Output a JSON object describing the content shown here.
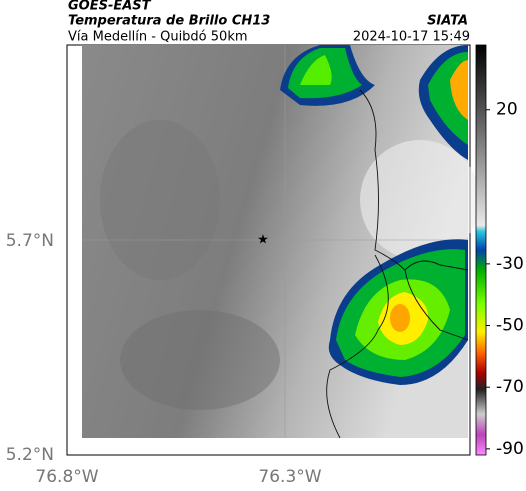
{
  "header": {
    "title": "GOES-EAST",
    "subtitle": "Temperatura de Brillo CH13",
    "source": "SIATA",
    "location": "Vía Medellín - Quibdó 50km",
    "timestamp": "2024-10-17 15:49"
  },
  "map": {
    "lat_labels": [
      "5.7°N",
      "5.2°N"
    ],
    "lon_labels": [
      "76.8°W",
      "76.3°W"
    ]
  },
  "colorbar": {
    "vlim": [
      -92,
      41
    ],
    "ticks": [
      20,
      -30,
      -50,
      -70,
      -90
    ]
  }
}
